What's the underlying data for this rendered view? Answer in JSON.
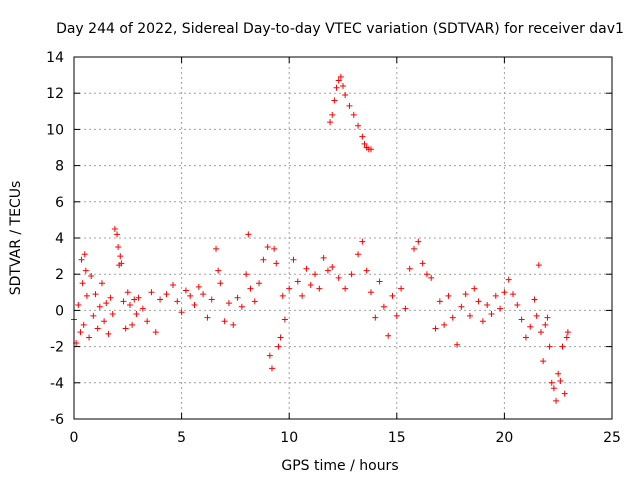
{
  "chart_data": {
    "type": "scatter",
    "title": "Day 244 of 2022, Sidereal Day-to-day VTEC variation (SDTVAR) for receiver dav1",
    "xlabel": "GPS time / hours",
    "ylabel": "SDTVAR / TECUs",
    "xlim": [
      0,
      25
    ],
    "ylim": [
      -6,
      14
    ],
    "xticks": [
      0,
      5,
      10,
      15,
      20,
      25
    ],
    "xtick_labels": [
      "0",
      "5",
      "10",
      "15",
      "20",
      "25"
    ],
    "yticks": [
      -6,
      -4,
      -2,
      0,
      2,
      4,
      6,
      8,
      10,
      12,
      14
    ],
    "ytick_labels": [
      "-6",
      "-4",
      "-2",
      "0",
      "2",
      "4",
      "6",
      "8",
      "10",
      "12",
      "14"
    ],
    "grid": true,
    "marker": "+",
    "color": "#ff0000",
    "series": [
      {
        "name": "SDTVAR",
        "points": [
          [
            0.0,
            -0.5
          ],
          [
            0.1,
            -1.8
          ],
          [
            0.2,
            0.3
          ],
          [
            0.3,
            -1.2
          ],
          [
            0.35,
            2.8
          ],
          [
            0.4,
            1.5
          ],
          [
            0.45,
            -0.8
          ],
          [
            0.5,
            3.1
          ],
          [
            0.55,
            2.2
          ],
          [
            0.6,
            0.8
          ],
          [
            0.7,
            -1.5
          ],
          [
            0.8,
            1.9
          ],
          [
            0.9,
            -0.3
          ],
          [
            1.0,
            0.9
          ],
          [
            1.1,
            -1.0
          ],
          [
            1.2,
            0.2
          ],
          [
            1.3,
            1.5
          ],
          [
            1.4,
            -0.6
          ],
          [
            1.5,
            0.4
          ],
          [
            1.6,
            -1.3
          ],
          [
            1.7,
            0.7
          ],
          [
            1.8,
            -0.2
          ],
          [
            1.9,
            4.5
          ],
          [
            2.0,
            4.2
          ],
          [
            2.05,
            3.5
          ],
          [
            2.1,
            2.5
          ],
          [
            2.15,
            3.0
          ],
          [
            2.2,
            2.6
          ],
          [
            2.3,
            0.5
          ],
          [
            2.4,
            -1.0
          ],
          [
            2.5,
            1.0
          ],
          [
            2.6,
            0.3
          ],
          [
            2.7,
            -0.8
          ],
          [
            2.8,
            0.6
          ],
          [
            2.9,
            -0.2
          ],
          [
            3.0,
            0.7
          ],
          [
            3.2,
            0.1
          ],
          [
            3.4,
            -0.6
          ],
          [
            3.6,
            1.0
          ],
          [
            3.8,
            -1.2
          ],
          [
            4.0,
            0.6
          ],
          [
            4.3,
            0.9
          ],
          [
            4.6,
            1.4
          ],
          [
            4.8,
            0.5
          ],
          [
            5.0,
            -0.1
          ],
          [
            5.2,
            1.1
          ],
          [
            5.4,
            0.8
          ],
          [
            5.6,
            0.3
          ],
          [
            5.8,
            1.3
          ],
          [
            6.0,
            0.9
          ],
          [
            6.2,
            -0.4
          ],
          [
            6.4,
            0.6
          ],
          [
            6.6,
            3.4
          ],
          [
            6.7,
            2.2
          ],
          [
            6.8,
            1.5
          ],
          [
            7.0,
            -0.6
          ],
          [
            7.2,
            0.4
          ],
          [
            7.4,
            -0.8
          ],
          [
            7.6,
            0.7
          ],
          [
            7.8,
            0.2
          ],
          [
            8.0,
            2.0
          ],
          [
            8.1,
            4.2
          ],
          [
            8.2,
            1.2
          ],
          [
            8.4,
            0.5
          ],
          [
            8.6,
            1.5
          ],
          [
            8.8,
            2.8
          ],
          [
            9.0,
            3.5
          ],
          [
            9.1,
            -2.5
          ],
          [
            9.2,
            -3.2
          ],
          [
            9.3,
            3.4
          ],
          [
            9.4,
            2.6
          ],
          [
            9.5,
            -2.0
          ],
          [
            9.6,
            -1.5
          ],
          [
            9.7,
            0.8
          ],
          [
            9.8,
            -0.5
          ],
          [
            10.0,
            1.2
          ],
          [
            10.2,
            2.8
          ],
          [
            10.4,
            1.6
          ],
          [
            10.6,
            0.8
          ],
          [
            10.8,
            2.3
          ],
          [
            11.0,
            1.4
          ],
          [
            11.2,
            2.0
          ],
          [
            11.4,
            1.2
          ],
          [
            11.6,
            2.9
          ],
          [
            11.8,
            2.2
          ],
          [
            11.9,
            10.4
          ],
          [
            12.0,
            10.8
          ],
          [
            12.1,
            11.6
          ],
          [
            12.2,
            12.3
          ],
          [
            12.3,
            12.7
          ],
          [
            12.4,
            12.9
          ],
          [
            12.5,
            12.4
          ],
          [
            12.6,
            11.9
          ],
          [
            12.8,
            11.3
          ],
          [
            13.0,
            10.8
          ],
          [
            13.2,
            10.2
          ],
          [
            13.4,
            9.6
          ],
          [
            13.5,
            9.2
          ],
          [
            13.6,
            9.0
          ],
          [
            13.7,
            8.9
          ],
          [
            13.8,
            8.9
          ],
          [
            12.0,
            2.4
          ],
          [
            12.3,
            1.8
          ],
          [
            12.6,
            1.2
          ],
          [
            12.9,
            2.0
          ],
          [
            13.2,
            3.1
          ],
          [
            13.4,
            3.8
          ],
          [
            13.6,
            2.2
          ],
          [
            13.8,
            1.0
          ],
          [
            14.0,
            -0.4
          ],
          [
            14.2,
            1.6
          ],
          [
            14.4,
            0.2
          ],
          [
            14.6,
            -1.4
          ],
          [
            14.8,
            0.8
          ],
          [
            15.0,
            -0.3
          ],
          [
            15.2,
            1.2
          ],
          [
            15.4,
            0.1
          ],
          [
            15.6,
            2.3
          ],
          [
            15.8,
            3.4
          ],
          [
            16.0,
            3.8
          ],
          [
            16.2,
            2.6
          ],
          [
            16.4,
            2.0
          ],
          [
            16.6,
            1.8
          ],
          [
            16.8,
            -1.0
          ],
          [
            17.0,
            0.5
          ],
          [
            17.2,
            -0.8
          ],
          [
            17.4,
            0.8
          ],
          [
            17.6,
            -0.4
          ],
          [
            17.8,
            -1.9
          ],
          [
            18.0,
            0.2
          ],
          [
            18.2,
            0.9
          ],
          [
            18.4,
            -0.3
          ],
          [
            18.6,
            1.2
          ],
          [
            18.8,
            0.5
          ],
          [
            19.0,
            -0.6
          ],
          [
            19.2,
            0.3
          ],
          [
            19.4,
            -0.2
          ],
          [
            19.6,
            0.8
          ],
          [
            19.8,
            0.1
          ],
          [
            20.0,
            1.0
          ],
          [
            20.2,
            1.7
          ],
          [
            20.4,
            0.9
          ],
          [
            20.6,
            0.3
          ],
          [
            20.8,
            -0.5
          ],
          [
            21.0,
            -1.5
          ],
          [
            21.2,
            -0.9
          ],
          [
            21.4,
            0.6
          ],
          [
            21.5,
            -0.3
          ],
          [
            21.6,
            2.5
          ],
          [
            21.7,
            -1.2
          ],
          [
            21.8,
            -2.8
          ],
          [
            21.9,
            -0.8
          ],
          [
            22.0,
            -0.4
          ],
          [
            22.1,
            -2.0
          ],
          [
            22.2,
            -4.0
          ],
          [
            22.3,
            -4.3
          ],
          [
            22.4,
            -5.0
          ],
          [
            22.5,
            -3.5
          ],
          [
            22.6,
            -3.9
          ],
          [
            22.7,
            -2.0
          ],
          [
            22.8,
            -4.6
          ],
          [
            22.9,
            -1.5
          ],
          [
            22.95,
            -1.2
          ]
        ]
      }
    ]
  }
}
